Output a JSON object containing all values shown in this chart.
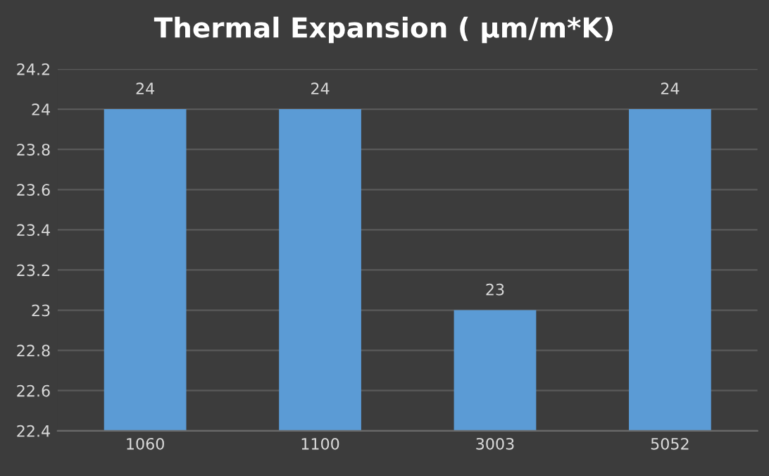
{
  "chart_data": {
    "type": "bar",
    "title": "Thermal Expansion ( µm/m*K)",
    "categories": [
      "1060",
      "1100",
      "3003",
      "5052"
    ],
    "values": [
      24,
      24,
      23,
      24
    ],
    "color": "#5b9bd5",
    "ylim": [
      22.4,
      24.2
    ],
    "yticks": [
      22.4,
      22.6,
      22.8,
      23,
      23.2,
      23.4,
      23.6,
      23.8,
      24,
      24.2
    ],
    "grid": "y",
    "data_labels": true
  }
}
